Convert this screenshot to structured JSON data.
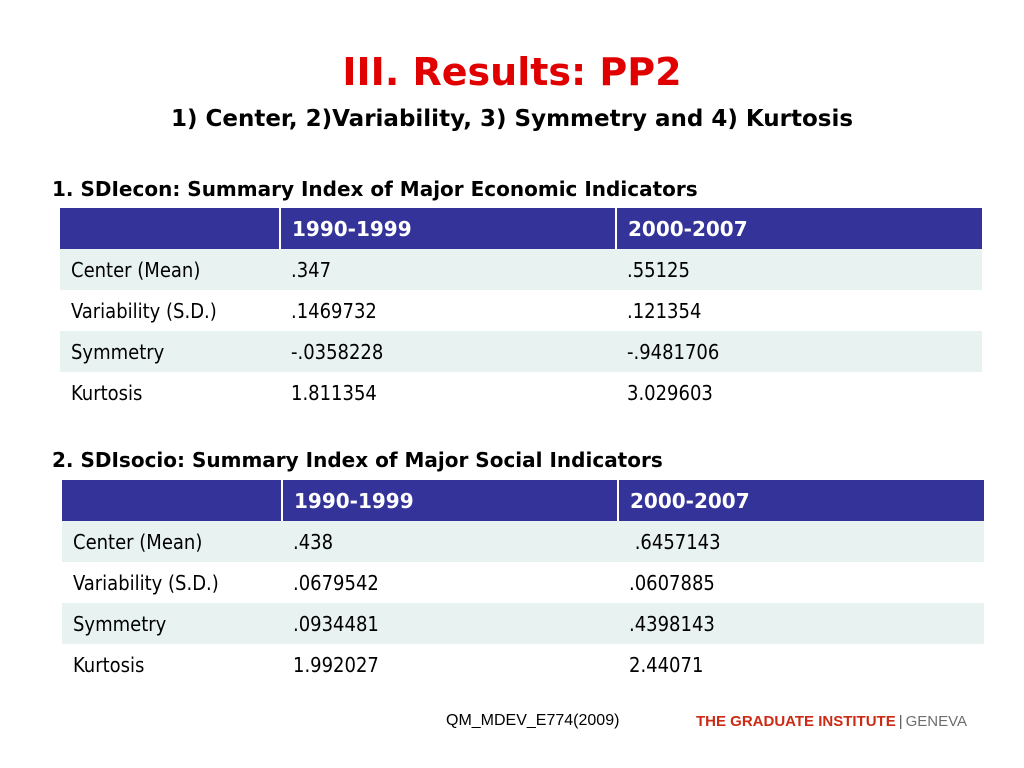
{
  "title": "III. Results: PP2",
  "subtitle": "1) Center, 2)Variability, 3) Symmetry and  4) Kurtosis",
  "sections": [
    {
      "heading": "1. SDIecon: Summary Index of Major Economic Indicators",
      "columns": [
        "",
        "1990-1999",
        "2000-2007"
      ],
      "rows": [
        [
          "Center (Mean)",
          ".347",
          ".55125"
        ],
        [
          "Variability (S.D.)",
          ".1469732",
          ".121354"
        ],
        [
          "Symmetry",
          "-.0358228",
          "-.9481706"
        ],
        [
          "Kurtosis",
          "1.811354",
          "3.029603"
        ]
      ]
    },
    {
      "heading": "2. SDIsocio: Summary Index of Major Social Indicators",
      "columns": [
        "",
        "1990-1999",
        "2000-2007"
      ],
      "rows": [
        [
          "Center (Mean)",
          ".438",
          " .6457143"
        ],
        [
          "Variability (S.D.)",
          ".0679542",
          ".0607885"
        ],
        [
          "Symmetry",
          ".0934481",
          ".4398143"
        ],
        [
          "Kurtosis",
          "1.992027",
          "2.44071"
        ]
      ]
    }
  ],
  "footer": {
    "course_code": "QM_MDEV_E774(2009)",
    "institute_name": "THE GRADUATE INSTITUTE",
    "separator": "|",
    "city": "GENEVA"
  },
  "colors": {
    "title": "#e00000",
    "table_header": "#333399",
    "row_band": "#e8f2f1",
    "logo_red": "#cc2a14"
  }
}
